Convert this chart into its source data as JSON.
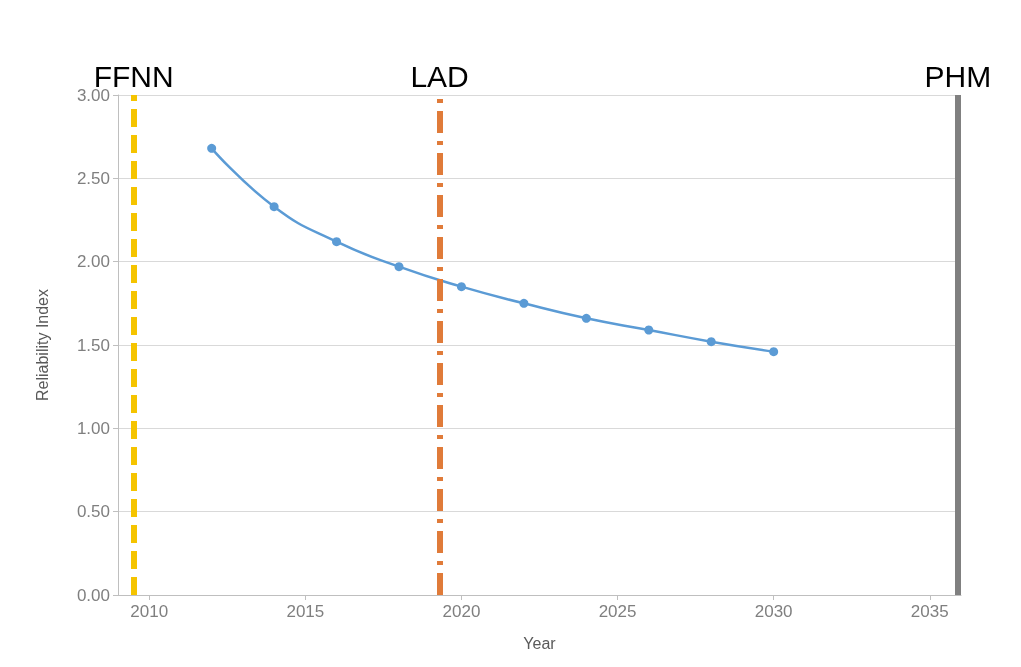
{
  "chart_data": {
    "type": "line",
    "xlabel": "Year",
    "ylabel": "Reliability Index",
    "x": [
      2012,
      2014,
      2016,
      2018,
      2020,
      2022,
      2024,
      2026,
      2028,
      2030
    ],
    "series": [
      {
        "color": "#5b9bd5",
        "values": [
          2.68,
          2.33,
          2.12,
          1.97,
          1.85,
          1.75,
          1.66,
          1.59,
          1.52,
          1.46
        ]
      }
    ],
    "xlim": [
      2009,
      2036
    ],
    "xticks": [
      2010,
      2015,
      2020,
      2025,
      2030,
      2035
    ],
    "ylim": [
      0,
      3
    ],
    "yticks": [
      {
        "value": 0,
        "label": "0.00"
      },
      {
        "value": 0.5,
        "label": "0.50"
      },
      {
        "value": 1,
        "label": "1.00"
      },
      {
        "value": 1.5,
        "label": "1.50"
      },
      {
        "value": 2,
        "label": "2.00"
      },
      {
        "value": 2.5,
        "label": "2.50"
      },
      {
        "value": 3,
        "label": "3.00"
      }
    ],
    "ref_lines": [
      {
        "axis": "x",
        "value": 2009.5,
        "label": "FFNN",
        "color": "#f5c400",
        "line_style": "dashed"
      },
      {
        "axis": "x",
        "value": 2019.3,
        "label": "LAD",
        "color": "#e07b39",
        "line_style": "dashdot"
      },
      {
        "axis": "x",
        "value": 2035.9,
        "label": "PHM",
        "color": "#808080",
        "line_style": "solid"
      }
    ],
    "grid": "y",
    "marker": "circle",
    "line_style": "solid"
  }
}
